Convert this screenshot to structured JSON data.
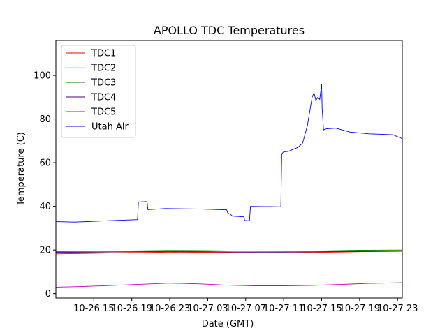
{
  "chart_data": {
    "type": "line",
    "title": "APOLLO TDC Temperatures",
    "xlabel": "Date (GMT)",
    "ylabel": "Temperature (C)",
    "x_unit": "hour",
    "xlim": [
      11.0,
      47.5
    ],
    "ylim": [
      -2,
      116
    ],
    "x_ticks": [
      {
        "value": 15,
        "label": "10-26 15"
      },
      {
        "value": 19,
        "label": "10-26 19"
      },
      {
        "value": 23,
        "label": "10-26 23"
      },
      {
        "value": 27,
        "label": "10-27 03"
      },
      {
        "value": 31,
        "label": "10-27 07"
      },
      {
        "value": 35,
        "label": "10-27 11"
      },
      {
        "value": 39,
        "label": "10-27 15"
      },
      {
        "value": 43,
        "label": "10-27 19"
      },
      {
        "value": 47,
        "label": "10-27 23"
      }
    ],
    "y_ticks": [
      0,
      20,
      40,
      60,
      80,
      100
    ],
    "grid": false,
    "legend_position": "top-left",
    "series": [
      {
        "name": "TDC1",
        "color": "#ff0000",
        "x": [
          11.0,
          15.0,
          19.0,
          23.0,
          27.0,
          31.0,
          35.0,
          39.0,
          43.0,
          47.5
        ],
        "y": [
          18.2,
          18.5,
          18.8,
          19.0,
          18.9,
          18.7,
          18.6,
          18.9,
          19.2,
          19.4
        ]
      },
      {
        "name": "TDC2",
        "color": "#ffcc00",
        "x": [
          11.0,
          15.0,
          19.0,
          23.0,
          27.0,
          31.0,
          35.0,
          39.0,
          43.0,
          47.5
        ],
        "y": [
          18.6,
          18.9,
          19.2,
          19.4,
          19.3,
          19.1,
          19.0,
          19.3,
          19.6,
          19.8
        ]
      },
      {
        "name": "TDC3",
        "color": "#008000",
        "x": [
          11.0,
          15.0,
          19.0,
          23.0,
          27.0,
          31.0,
          35.0,
          39.0,
          43.0,
          47.5
        ],
        "y": [
          19.3,
          19.4,
          19.6,
          19.8,
          19.7,
          19.5,
          19.4,
          19.6,
          19.9,
          20.0
        ]
      },
      {
        "name": "TDC4",
        "color": "#4b0082",
        "x": [
          11.0,
          15.0,
          19.0,
          23.0,
          27.0,
          31.0,
          35.0,
          39.0,
          43.0,
          47.5
        ],
        "y": [
          18.9,
          19.0,
          19.2,
          19.3,
          19.2,
          19.0,
          19.0,
          19.2,
          19.4,
          19.5
        ]
      },
      {
        "name": "TDC5",
        "color": "#c000c0",
        "x": [
          11.0,
          14.0,
          17.0,
          20.0,
          23.0,
          26.0,
          29.0,
          32.0,
          35.0,
          38.0,
          41.0,
          44.0,
          47.5
        ],
        "y": [
          3.0,
          3.3,
          3.8,
          4.3,
          4.8,
          4.5,
          3.9,
          3.6,
          3.6,
          3.8,
          4.2,
          4.7,
          5.0
        ]
      },
      {
        "name": "Utah Air",
        "color": "#0000ff",
        "x": [
          11.0,
          13.0,
          16.0,
          19.6,
          19.7,
          20.6,
          20.7,
          22.5,
          26.0,
          29.0,
          29.1,
          29.5,
          29.6,
          30.8,
          30.9,
          31.4,
          31.5,
          34.7,
          34.8,
          35.0,
          35.5,
          36.5,
          37.0,
          37.5,
          38.0,
          38.2,
          38.4,
          38.6,
          38.8,
          39.0,
          39.05,
          39.2,
          39.5,
          40.5,
          42.0,
          44.0,
          46.5,
          47.5
        ],
        "y": [
          33.0,
          32.8,
          33.3,
          33.9,
          42.0,
          42.2,
          38.5,
          39.0,
          38.8,
          38.4,
          37.0,
          36.0,
          35.5,
          35.2,
          33.5,
          33.4,
          40.0,
          39.8,
          64.0,
          65.0,
          65.2,
          67.0,
          69.0,
          77.0,
          90.0,
          92.0,
          88.5,
          90.0,
          89.0,
          96.0,
          85.0,
          75.0,
          75.5,
          75.8,
          74.0,
          73.2,
          72.8,
          71.0
        ]
      }
    ]
  }
}
